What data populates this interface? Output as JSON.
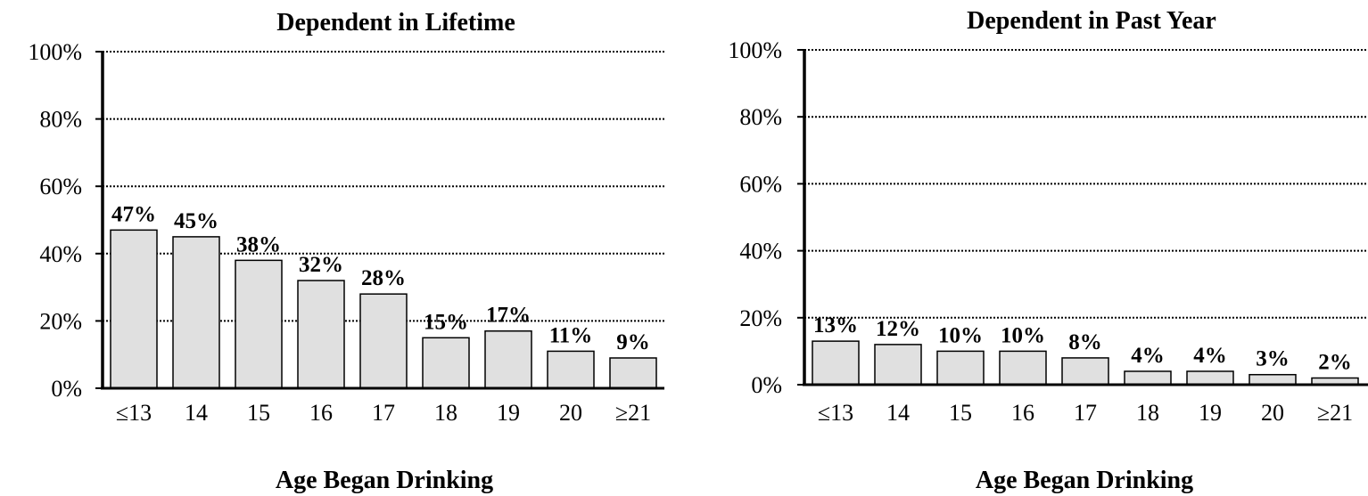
{
  "chart_data": [
    {
      "type": "bar",
      "title": "Dependent in Lifetime",
      "xlabel": "Age Began Drinking",
      "ylabel": "",
      "ylim": [
        0,
        100
      ],
      "yticks": [
        "0%",
        "20%",
        "40%",
        "60%",
        "80%",
        "100%"
      ],
      "grid": "dotted horizontal",
      "categories": [
        "≤13",
        "14",
        "15",
        "16",
        "17",
        "18",
        "19",
        "20",
        "≥21"
      ],
      "values": [
        47,
        45,
        38,
        32,
        28,
        15,
        17,
        11,
        9
      ],
      "labels": [
        "47%",
        "45%",
        "38%",
        "32%",
        "28%",
        "15%",
        "17%",
        "11%",
        "9%"
      ],
      "bar_color": "#e0e0e0"
    },
    {
      "type": "bar",
      "title": "Dependent in Past Year",
      "xlabel": "Age Began Drinking",
      "ylabel": "",
      "ylim": [
        0,
        100
      ],
      "yticks": [
        "0%",
        "20%",
        "40%",
        "60%",
        "80%",
        "100%"
      ],
      "grid": "dotted horizontal",
      "categories": [
        "≤13",
        "14",
        "15",
        "16",
        "17",
        "18",
        "19",
        "20",
        "≥21"
      ],
      "values": [
        13,
        12,
        10,
        10,
        8,
        4,
        4,
        3,
        2
      ],
      "labels": [
        "13%",
        "12%",
        "10%",
        "10%",
        "8%",
        "4%",
        "4%",
        "3%",
        "2%"
      ],
      "bar_color": "#e0e0e0"
    }
  ]
}
